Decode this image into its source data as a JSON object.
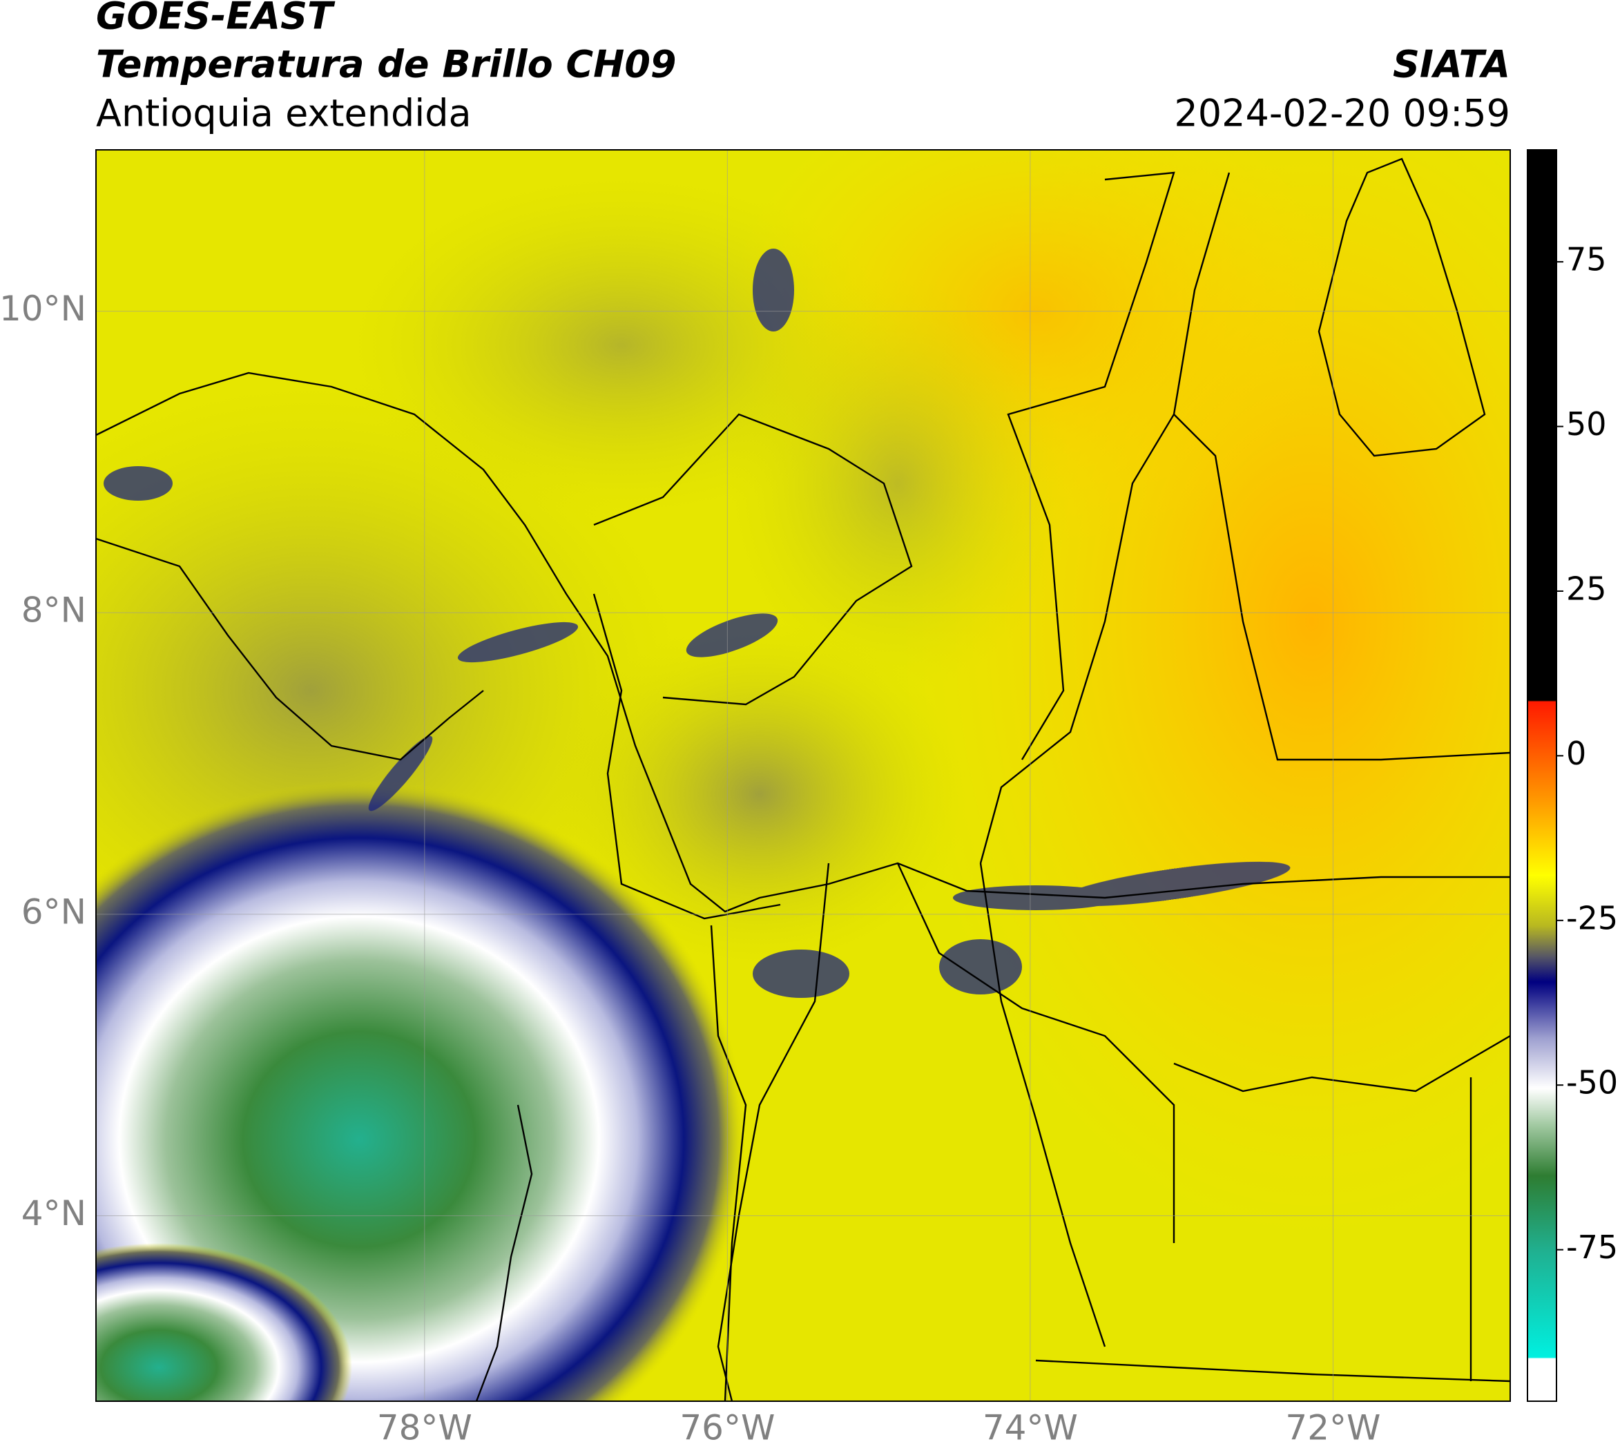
{
  "header": {
    "title": "GOES-EAST",
    "subtitle": "Temperatura de Brillo CH09",
    "region": "Antioquia extendida",
    "source": "SIATA",
    "datetime": "2024-02-20 09:59"
  },
  "map": {
    "lon_range": [
      -80.17,
      -70.83
    ],
    "lat_range": [
      2.77,
      11.07
    ],
    "lon_ticks": [
      {
        "value": -78,
        "label": "78°W"
      },
      {
        "value": -76,
        "label": "76°W"
      },
      {
        "value": -74,
        "label": "74°W"
      },
      {
        "value": -72,
        "label": "72°W"
      }
    ],
    "lat_ticks": [
      {
        "value": 10,
        "label": "10°N"
      },
      {
        "value": 8,
        "label": "8°N"
      },
      {
        "value": 6,
        "label": "6°N"
      },
      {
        "value": 4,
        "label": "4°N"
      }
    ]
  },
  "colorbar": {
    "range": [
      -98,
      92
    ],
    "ticks": [
      75,
      50,
      25,
      0,
      -25,
      -50,
      -75
    ]
  }
}
